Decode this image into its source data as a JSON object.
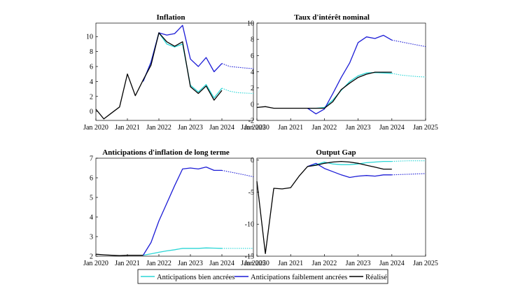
{
  "colors": {
    "bien": "#2bd6d6",
    "faible": "#1c1cd6",
    "realise": "#000000"
  },
  "legend": {
    "items": [
      {
        "label": "Anticipations bien ancrées",
        "color": "#2bd6d6"
      },
      {
        "label": "Anticipations faiblement ancrées",
        "color": "#1c1cd6"
      },
      {
        "label": "Réalisé",
        "color": "#000000"
      }
    ],
    "placement": "bottom-center"
  },
  "chart_data": [
    {
      "type": "line",
      "title": "Inflation",
      "xlabel": "",
      "ylabel": "",
      "xlim": [
        2020,
        2025
      ],
      "ylim": [
        -1.2,
        11.8
      ],
      "x_ticks": [
        2020,
        2021,
        2022,
        2023,
        2024,
        2025
      ],
      "x_tick_labels": [
        "Jan 2020",
        "Jan 2021",
        "Jan 2022",
        "Jan 2023",
        "Jan 2024",
        "Jan 2025"
      ],
      "y_ticks": [
        0,
        2,
        4,
        6,
        8,
        10
      ],
      "y_tick_labels": [
        "0",
        "2",
        "4",
        "6",
        "8",
        "10"
      ],
      "grid": false,
      "series": [
        {
          "name": "Anticipations bien ancrées",
          "color": "#2bd6d6",
          "x": [
            2021.5,
            2021.75,
            2022.0,
            2022.25,
            2022.5,
            2022.75,
            2023.0,
            2023.25,
            2023.5,
            2023.75,
            2024.0
          ],
          "y": [
            4.0,
            6.6,
            10.5,
            9.0,
            8.6,
            9.0,
            3.5,
            2.6,
            3.6,
            1.8,
            3.1
          ],
          "dotted": {
            "x": [
              2024.0,
              2024.25,
              2024.5,
              2024.75,
              2025.0
            ],
            "y": [
              3.1,
              2.7,
              2.5,
              2.45,
              2.4
            ]
          }
        },
        {
          "name": "Anticipations faiblement ancrées",
          "color": "#1c1cd6",
          "x": [
            2021.5,
            2021.75,
            2022.0,
            2022.25,
            2022.5,
            2022.75,
            2023.0,
            2023.25,
            2023.5,
            2023.75,
            2024.0
          ],
          "y": [
            4.0,
            6.6,
            10.5,
            10.2,
            10.4,
            11.5,
            7.0,
            6.0,
            7.2,
            5.3,
            6.4
          ],
          "dotted": {
            "x": [
              2024.0,
              2024.25,
              2024.5,
              2024.75,
              2025.0
            ],
            "y": [
              6.4,
              6.0,
              5.9,
              5.8,
              5.7
            ]
          }
        },
        {
          "name": "Réalisé",
          "color": "#000000",
          "x": [
            2020.0,
            2020.25,
            2020.5,
            2020.75,
            2021.0,
            2021.25,
            2021.5,
            2021.75,
            2022.0,
            2022.25,
            2022.5,
            2022.75,
            2023.0,
            2023.25,
            2023.5,
            2023.75,
            2024.0
          ],
          "y": [
            0.3,
            -1.0,
            -0.2,
            0.6,
            5.0,
            2.1,
            4.2,
            6.2,
            10.5,
            9.3,
            8.7,
            9.3,
            3.3,
            2.4,
            3.4,
            1.5,
            2.8
          ]
        }
      ]
    },
    {
      "type": "line",
      "title": "Taux d'intérêt nominal",
      "xlabel": "",
      "ylabel": "",
      "xlim": [
        2020,
        2025
      ],
      "ylim": [
        -2,
        10
      ],
      "x_ticks": [
        2020,
        2021,
        2022,
        2023,
        2024,
        2025
      ],
      "x_tick_labels": [
        "Jan 2020",
        "Jan 2021",
        "Jan 2022",
        "Jan 2023",
        "Jan 2024",
        "Jan 2025"
      ],
      "y_ticks": [
        -2,
        0,
        2,
        4,
        6,
        8,
        10
      ],
      "y_tick_labels": [
        "-2",
        "0",
        "2",
        "4",
        "6",
        "8",
        "10"
      ],
      "grid": false,
      "series": [
        {
          "name": "Anticipations bien ancrées",
          "color": "#2bd6d6",
          "x": [
            2021.5,
            2021.75,
            2022.0,
            2022.25,
            2022.5,
            2022.75,
            2023.0,
            2023.25,
            2023.5,
            2023.75,
            2024.0
          ],
          "y": [
            -0.5,
            -0.5,
            -0.4,
            0.5,
            1.7,
            2.8,
            3.5,
            3.85,
            3.9,
            3.85,
            3.8
          ],
          "dotted": {
            "x": [
              2024.0,
              2024.25,
              2024.5,
              2024.75,
              2025.0
            ],
            "y": [
              3.8,
              3.6,
              3.5,
              3.4,
              3.35
            ]
          }
        },
        {
          "name": "Anticipations faiblement ancrées",
          "color": "#1c1cd6",
          "x": [
            2021.5,
            2021.75,
            2022.0,
            2022.25,
            2022.5,
            2022.75,
            2023.0,
            2023.25,
            2023.5,
            2023.75,
            2024.0
          ],
          "y": [
            -0.5,
            -1.2,
            -0.6,
            1.3,
            3.3,
            5.1,
            7.6,
            8.3,
            8.1,
            8.5,
            7.9
          ],
          "dotted": {
            "x": [
              2024.0,
              2024.25,
              2024.5,
              2024.75,
              2025.0
            ],
            "y": [
              7.9,
              7.7,
              7.5,
              7.3,
              7.1
            ]
          }
        },
        {
          "name": "Réalisé",
          "color": "#000000",
          "x": [
            2020.0,
            2020.25,
            2020.5,
            2020.75,
            2021.0,
            2021.25,
            2021.5,
            2021.75,
            2022.0,
            2022.25,
            2022.5,
            2022.75,
            2023.0,
            2023.25,
            2023.5,
            2023.75,
            2024.0
          ],
          "y": [
            -0.4,
            -0.3,
            -0.5,
            -0.5,
            -0.5,
            -0.5,
            -0.5,
            -0.5,
            -0.5,
            0.3,
            1.8,
            2.6,
            3.3,
            3.7,
            3.95,
            3.95,
            3.95
          ]
        }
      ]
    },
    {
      "type": "line",
      "title": "Anticipations d'inflation de long terme",
      "xlabel": "",
      "ylabel": "",
      "xlim": [
        2020,
        2025
      ],
      "ylim": [
        2,
        7
      ],
      "x_ticks": [
        2020,
        2021,
        2022,
        2023,
        2024,
        2025
      ],
      "x_tick_labels": [
        "Jan 2020",
        "Jan 2021",
        "Jan 2022",
        "Jan 2023",
        "Jan 2024",
        "Jan 2025"
      ],
      "y_ticks": [
        2,
        3,
        4,
        5,
        6,
        7
      ],
      "y_tick_labels": [
        "2",
        "3",
        "4",
        "5",
        "6",
        "7"
      ],
      "grid": false,
      "series": [
        {
          "name": "Anticipations bien ancrées",
          "color": "#2bd6d6",
          "x": [
            2021.5,
            2021.75,
            2022.0,
            2022.25,
            2022.5,
            2022.75,
            2023.0,
            2023.25,
            2023.5,
            2023.75,
            2024.0
          ],
          "y": [
            2.05,
            2.12,
            2.2,
            2.27,
            2.33,
            2.4,
            2.4,
            2.4,
            2.42,
            2.41,
            2.4
          ],
          "dotted": {
            "x": [
              2024.0,
              2024.25,
              2024.5,
              2024.75,
              2025.0
            ],
            "y": [
              2.4,
              2.4,
              2.4,
              2.4,
              2.4
            ]
          }
        },
        {
          "name": "Anticipations faiblement ancrées",
          "color": "#1c1cd6",
          "x": [
            2021.5,
            2021.75,
            2022.0,
            2022.25,
            2022.5,
            2022.75,
            2023.0,
            2023.25,
            2023.5,
            2023.75,
            2024.0
          ],
          "y": [
            2.05,
            2.7,
            3.8,
            4.7,
            5.6,
            6.45,
            6.5,
            6.45,
            6.55,
            6.38,
            6.38
          ],
          "dotted": {
            "x": [
              2024.0,
              2024.25,
              2024.5,
              2024.75,
              2025.0
            ],
            "y": [
              6.38,
              6.3,
              6.22,
              6.14,
              6.05
            ]
          }
        },
        {
          "name": "Réalisé",
          "color": "#000000",
          "x": [
            2020.0,
            2020.25,
            2020.5,
            2020.75,
            2021.0,
            2021.25,
            2021.5
          ],
          "y": [
            2.1,
            2.07,
            2.05,
            2.03,
            2.05,
            2.05,
            2.05
          ]
        }
      ]
    },
    {
      "type": "line",
      "title": "Output Gap",
      "xlabel": "",
      "ylabel": "",
      "xlim": [
        2020,
        2025
      ],
      "ylim": [
        -15,
        0.3
      ],
      "x_ticks": [
        2020,
        2021,
        2022,
        2023,
        2024,
        2025
      ],
      "x_tick_labels": [
        "Jan 2020",
        "Jan 2021",
        "Jan 2022",
        "Jan 2023",
        "Jan 2024",
        "Jan 2025"
      ],
      "y_ticks": [
        -15,
        -10,
        -5,
        0
      ],
      "y_tick_labels": [
        "-15",
        "-10",
        "-5",
        "0"
      ],
      "grid": false,
      "series": [
        {
          "name": "Anticipations bien ancrées",
          "color": "#2bd6d6",
          "x": [
            2021.5,
            2021.75,
            2022.0,
            2022.25,
            2022.5,
            2022.75,
            2023.0,
            2023.25,
            2023.5,
            2023.75,
            2024.0
          ],
          "y": [
            -1.0,
            -0.7,
            -0.3,
            -0.6,
            -0.7,
            -0.7,
            -0.6,
            -0.4,
            -0.3,
            -0.2,
            -0.2
          ],
          "dotted": {
            "x": [
              2024.0,
              2024.25,
              2024.5,
              2024.75,
              2025.0
            ],
            "y": [
              -0.2,
              -0.15,
              -0.1,
              -0.1,
              -0.1
            ]
          }
        },
        {
          "name": "Anticipations faiblement ancrées",
          "color": "#1c1cd6",
          "x": [
            2021.5,
            2021.75,
            2022.0,
            2022.25,
            2022.5,
            2022.75,
            2023.0,
            2023.25,
            2023.5,
            2023.75,
            2024.0
          ],
          "y": [
            -1.0,
            -0.5,
            -1.3,
            -1.8,
            -2.3,
            -2.7,
            -2.5,
            -2.4,
            -2.5,
            -2.3,
            -2.3
          ],
          "dotted": {
            "x": [
              2024.0,
              2024.25,
              2024.5,
              2024.75,
              2025.0
            ],
            "y": [
              -2.3,
              -2.25,
              -2.2,
              -2.15,
              -2.1
            ]
          }
        },
        {
          "name": "Réalisé",
          "color": "#000000",
          "x": [
            2020.0,
            2020.25,
            2020.5,
            2020.75,
            2021.0,
            2021.25,
            2021.5,
            2021.75,
            2022.0,
            2022.25,
            2022.5,
            2022.75,
            2023.0,
            2023.25,
            2023.5,
            2023.75,
            2024.0
          ],
          "y": [
            -3.3,
            -14.6,
            -4.4,
            -4.5,
            -4.3,
            -2.5,
            -1.0,
            -0.8,
            -0.5,
            -0.3,
            -0.2,
            -0.3,
            -0.5,
            -0.8,
            -1.1,
            -1.4,
            -1.4
          ]
        }
      ]
    }
  ]
}
